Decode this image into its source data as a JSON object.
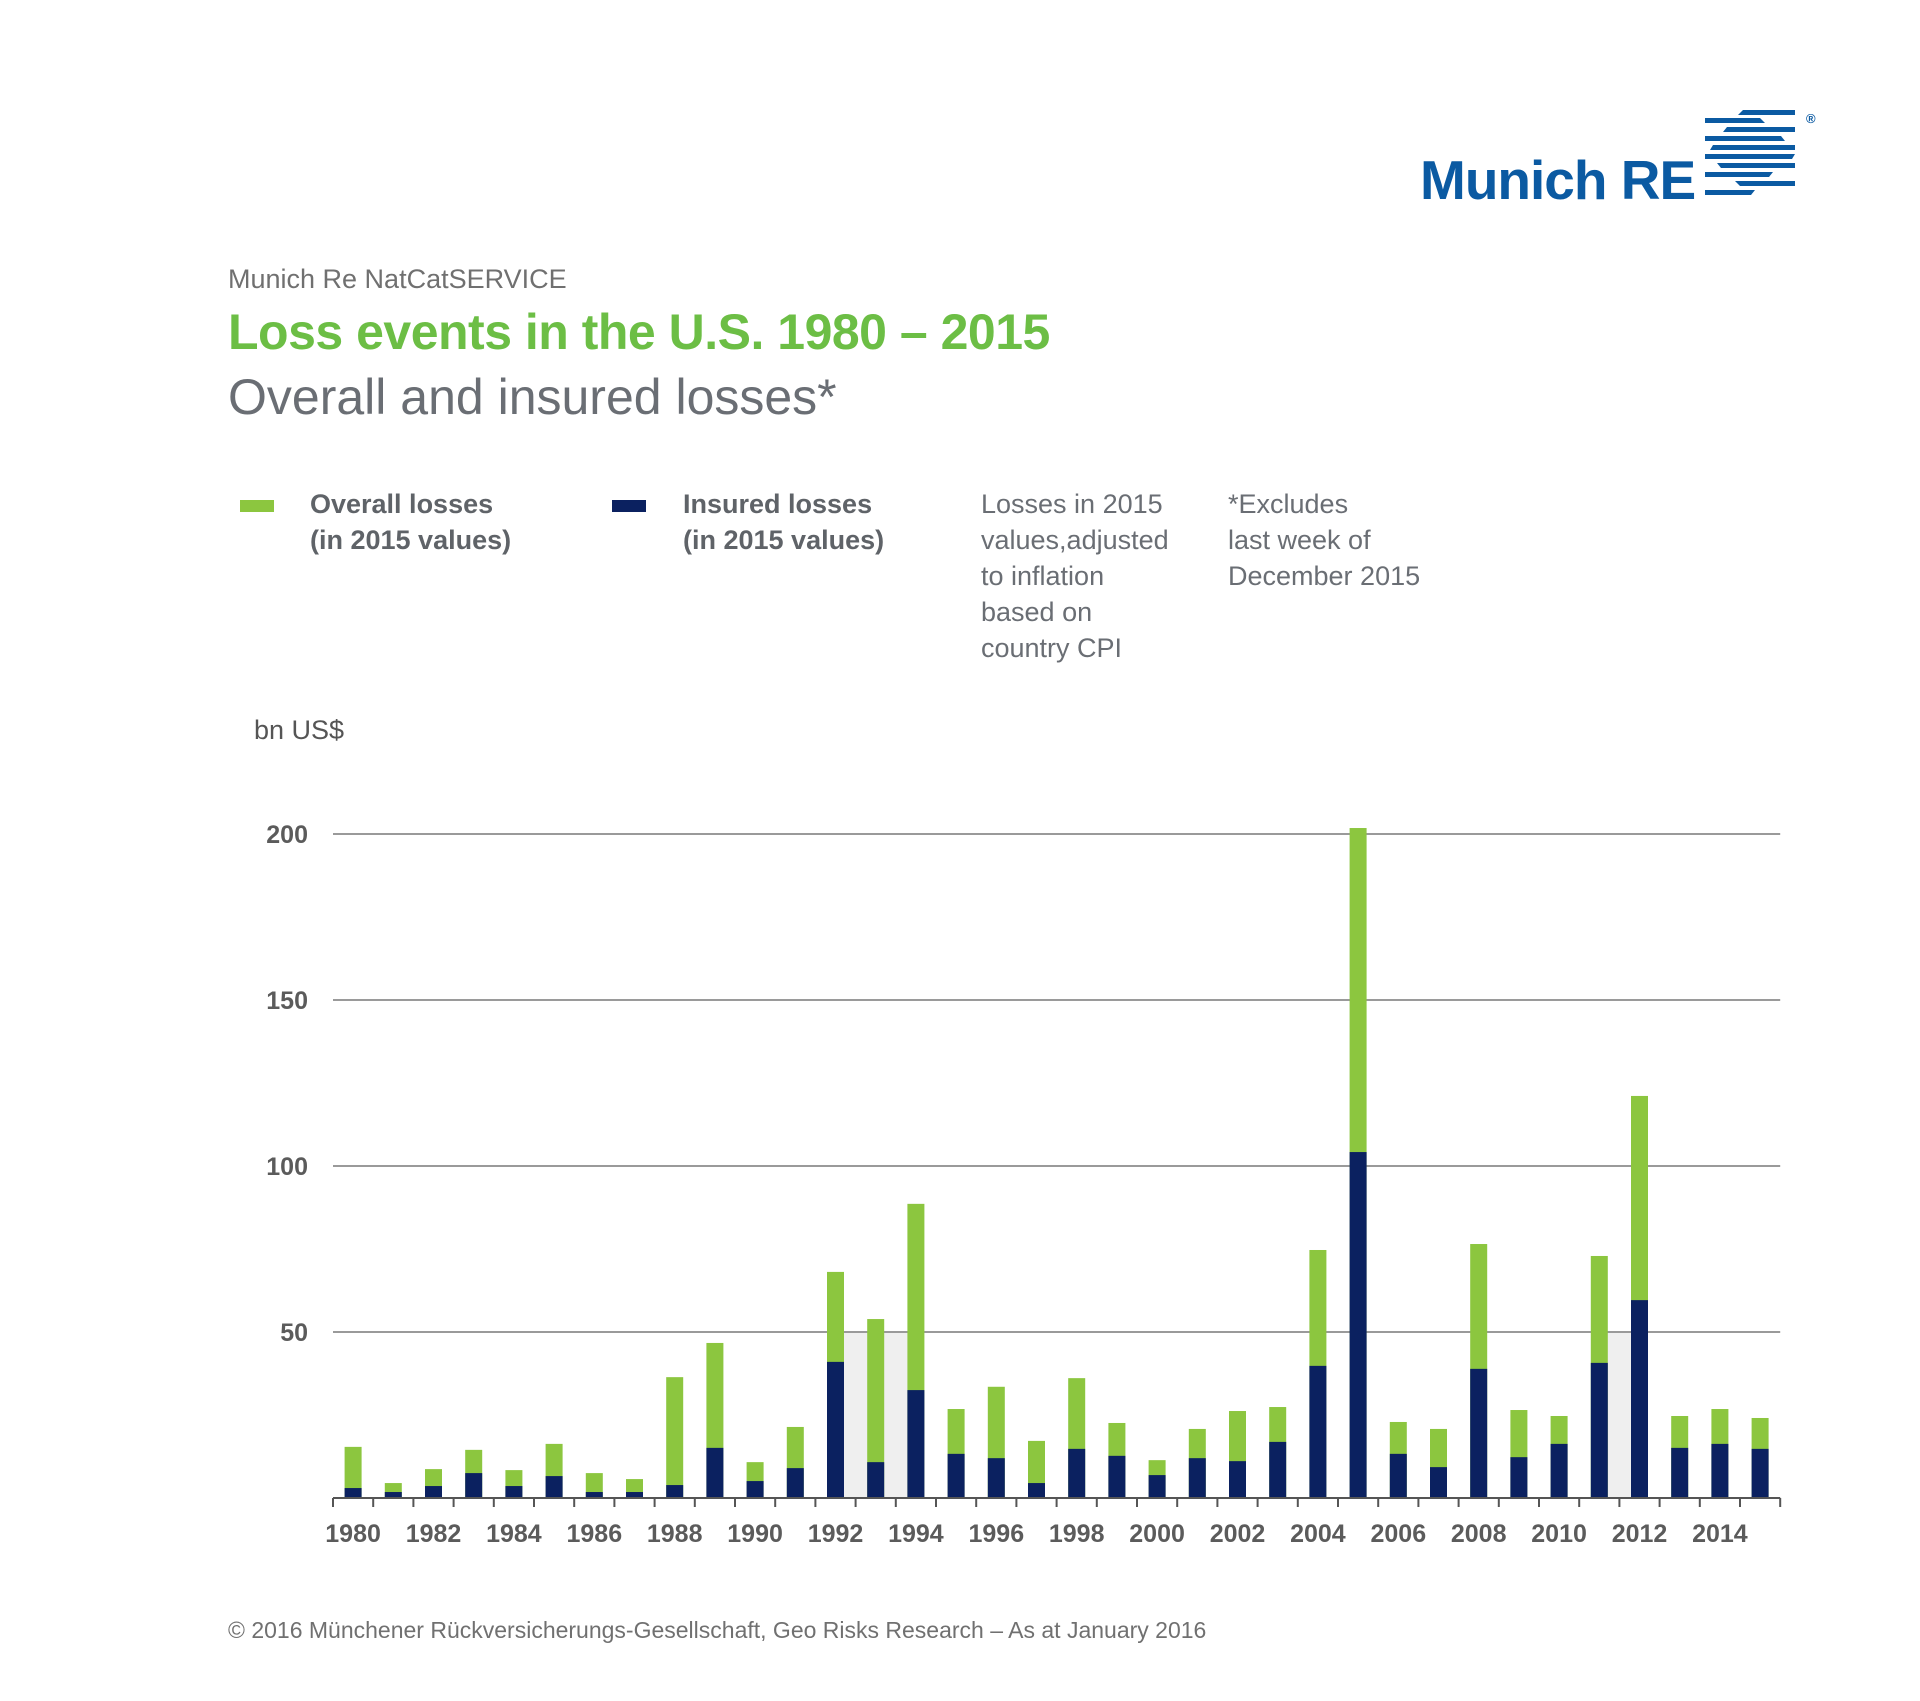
{
  "brand": {
    "logo_text": "Munich RE",
    "registered": "®",
    "logo_color": "#0b5aa2"
  },
  "header": {
    "supertitle": "Munich Re NatCatSERVICE",
    "title": "Loss events in the U.S. 1980 – 2015",
    "subtitle": "Overall and insured losses*"
  },
  "legend": {
    "items": [
      {
        "line1": "Overall losses",
        "line2": "(in 2015 values)",
        "color": "#8cc63f"
      },
      {
        "line1": "Insured losses",
        "line2": "(in 2015 values)",
        "color": "#0b2160"
      }
    ],
    "notes": [
      {
        "lines": [
          "Losses in 2015",
          "values,adjusted",
          "to inflation",
          "based on",
          "country CPI"
        ]
      },
      {
        "lines": [
          "*Excludes",
          "last week of",
          "December 2015"
        ]
      }
    ]
  },
  "footer": {
    "text": "© 2016 Münchener Rückversicherungs-Gesellschaft, Geo Risks Research – As at January 2016"
  },
  "chart_data": {
    "type": "bar",
    "stacking": "overlapped",
    "title": "Loss events in the U.S. 1980 – 2015",
    "subtitle": "Overall and insured losses*",
    "xlabel": "",
    "ylabel": "bn US$",
    "ylim": [
      0,
      200
    ],
    "yticks": [
      50,
      100,
      150,
      200
    ],
    "grid": true,
    "legend_position": "top",
    "categories": [
      1980,
      1981,
      1982,
      1983,
      1984,
      1985,
      1986,
      1987,
      1988,
      1989,
      1990,
      1991,
      1992,
      1993,
      1994,
      1995,
      1996,
      1997,
      1998,
      1999,
      2000,
      2001,
      2002,
      2003,
      2004,
      2005,
      2006,
      2007,
      2008,
      2009,
      2010,
      2011,
      2012,
      2013,
      2014,
      2015
    ],
    "xtick_labels": [
      "1980",
      "1982",
      "1984",
      "1986",
      "1988",
      "1990",
      "1992",
      "1994",
      "1996",
      "1998",
      "2000",
      "2002",
      "2004",
      "2006",
      "2008",
      "2010",
      "2012",
      "2014"
    ],
    "series": [
      {
        "name": "Overall losses (in 2015 values)",
        "color": "#8cc63f",
        "values": [
          15.4,
          4.5,
          8.7,
          14.5,
          8.4,
          16.3,
          7.5,
          5.7,
          36.4,
          46.7,
          10.8,
          21.4,
          68.1,
          53.9,
          88.6,
          26.8,
          33.5,
          17.2,
          36.1,
          22.6,
          11.4,
          20.8,
          26.2,
          27.4,
          74.7,
          201.8,
          22.9,
          20.8,
          76.5,
          26.5,
          24.7,
          72.9,
          121.1,
          24.7,
          26.8,
          24.1
        ]
      },
      {
        "name": "Insured losses (in 2015 values)",
        "color": "#0b2160",
        "values": [
          3.0,
          1.8,
          3.6,
          7.5,
          3.6,
          6.6,
          1.8,
          1.8,
          3.9,
          15.1,
          5.1,
          9.0,
          41.0,
          10.8,
          32.5,
          13.3,
          12.0,
          4.5,
          14.8,
          12.7,
          6.9,
          12.0,
          11.1,
          16.9,
          39.8,
          104.2,
          13.3,
          9.3,
          38.9,
          12.3,
          16.3,
          40.7,
          59.6,
          15.1,
          16.3,
          14.8
        ]
      }
    ],
    "shaded_bands": [
      {
        "from_year": 1992,
        "to_year": 1994,
        "upper_value": 50
      },
      {
        "from_year": 2011,
        "to_year": 2012,
        "upper_value": 50
      }
    ]
  }
}
